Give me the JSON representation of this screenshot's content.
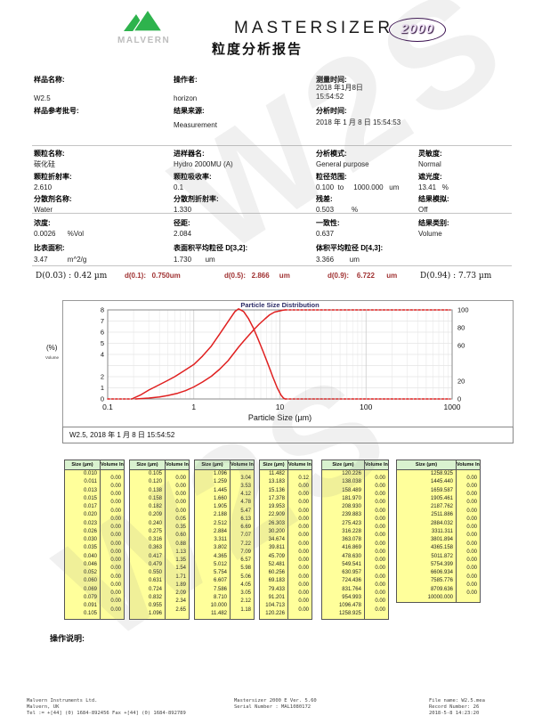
{
  "header": {
    "logo_text": "MALVERN",
    "wordmark": "MASTERSIZER",
    "badge": "2000",
    "report_title": "粒度分析报告"
  },
  "info": {
    "sample_name": {
      "label": "样品名称:",
      "value": "W2.5"
    },
    "operator": {
      "label": "操作者:",
      "value": "horizon"
    },
    "measure_time": {
      "label": "测量时间:",
      "value": "2018 年1月8日\n15:54:52"
    },
    "sample_ref": {
      "label": "样品参考批号:",
      "value": ""
    },
    "result_source": {
      "label": "结果来源:",
      "value": "Measurement"
    },
    "analysis_time": {
      "label": "分析时间:",
      "value": "2018 年 1 月 8 日 15:54:53"
    },
    "particle_name": {
      "label": "颗粒名称:",
      "value": "碳化硅"
    },
    "accessory_name": {
      "label": "进样器名:",
      "value": "Hydro 2000MU (A)"
    },
    "analysis_model": {
      "label": "分析模式:",
      "value": "General purpose"
    },
    "sensitivity": {
      "label": "灵敏度:",
      "value": "Normal"
    },
    "particle_ri": {
      "label": "颗粒折射率:",
      "value": "2.610"
    },
    "absorption": {
      "label": "颗粒吸收率:",
      "value": "0.1"
    },
    "size_range": {
      "label": "粒径范围:",
      "value": "0.100  to     1000.000   um"
    },
    "obscuration": {
      "label": "遮光度:",
      "value": "13.41   %"
    },
    "dispersant_name": {
      "label": "分散剂名称:",
      "value": "Water"
    },
    "dispersant_ri": {
      "label": "分散剂折射率:",
      "value": "1.330"
    },
    "residual": {
      "label": "残差:",
      "value": "0.503         %"
    },
    "result_emulation": {
      "label": "结果模拟:",
      "value": "Off"
    },
    "concentration": {
      "label": "浓度:",
      "value": "0.0026      %Vol"
    },
    "span": {
      "label": "径距:",
      "value": "2.084"
    },
    "uniformity": {
      "label": "一致性:",
      "value": "0.637"
    },
    "result_units": {
      "label": "结果类别:",
      "value": "Volume"
    },
    "specific_surface_area": {
      "label": "比表面积:",
      "value": "3.47          m^2/g"
    },
    "d32": {
      "label": "表面积平均粒径 D[3,2]:",
      "value": "1.730       um"
    },
    "d43": {
      "label": "体积平均粒径 D[4,3]:",
      "value": "3.366        um"
    }
  },
  "d_values": [
    {
      "text": "D(0.03) : 0.42 µm",
      "style": "plain"
    },
    {
      "text": "d(0.1):   0.750um",
      "style": "red"
    },
    {
      "text": "d(0.5):   2.866     um",
      "style": "red"
    },
    {
      "text": "d(0.9):    6.722      um",
      "style": "red"
    },
    {
      "text": "D(0.94) : 7.73 µm",
      "style": "plain"
    }
  ],
  "chart_data": {
    "type": "line",
    "title": "Particle Size Distribution",
    "xlabel": "Particle Size (µm)",
    "ylabel_left": "(%)",
    "ylabel_left_sub": "Volume",
    "x_scale": "log",
    "xlim": [
      0.1,
      1000
    ],
    "x_ticks": [
      "0.1",
      "1",
      "10",
      "100",
      "1000"
    ],
    "ylim_left": [
      0,
      8
    ],
    "y_ticks_left": [
      8,
      7,
      6,
      5,
      4,
      2,
      1,
      0
    ],
    "ylim_right": [
      0,
      100
    ],
    "y_ticks_right": [
      100,
      80,
      60,
      20,
      0
    ],
    "grid": true,
    "line_color": "#e02020",
    "legend": "W2.5, 2018 年 1 月 8 日 15:54:52",
    "series": [
      {
        "name": "volume-frequency",
        "axis": "left",
        "dash": false,
        "points": [
          [
            0.19,
            0
          ],
          [
            0.24,
            0.35
          ],
          [
            0.3,
            0.8
          ],
          [
            0.38,
            1.2
          ],
          [
            0.48,
            1.6
          ],
          [
            0.6,
            2.0
          ],
          [
            0.76,
            2.5
          ],
          [
            1.0,
            3.1
          ],
          [
            1.26,
            3.85
          ],
          [
            1.6,
            4.75
          ],
          [
            2.0,
            5.85
          ],
          [
            2.5,
            6.95
          ],
          [
            3.0,
            7.85
          ],
          [
            3.31,
            8.1
          ],
          [
            3.8,
            7.85
          ],
          [
            4.3,
            7.25
          ],
          [
            4.9,
            6.4
          ],
          [
            5.6,
            5.35
          ],
          [
            6.4,
            4.25
          ],
          [
            7.3,
            3.1
          ],
          [
            8.3,
            1.95
          ],
          [
            9.3,
            1.0
          ],
          [
            10.3,
            0.35
          ],
          [
            11.0,
            0.08
          ],
          [
            11.5,
            0
          ]
        ]
      },
      {
        "name": "volume-frequency-lead",
        "axis": "left",
        "dash": true,
        "points": [
          [
            0.1,
            0
          ],
          [
            0.19,
            0
          ]
        ]
      },
      {
        "name": "volume-frequency-tail",
        "axis": "left",
        "dash": true,
        "points": [
          [
            11.5,
            0
          ],
          [
            950,
            0
          ]
        ]
      },
      {
        "name": "cumulative-undersize",
        "axis": "right",
        "dash": false,
        "points": [
          [
            0.21,
            0
          ],
          [
            0.3,
            1.0
          ],
          [
            0.4,
            2.3
          ],
          [
            0.5,
            3.9
          ],
          [
            0.65,
            6.4
          ],
          [
            0.8,
            9.3
          ],
          [
            1.0,
            13.5
          ],
          [
            1.26,
            19.0
          ],
          [
            1.6,
            25.5
          ],
          [
            2.0,
            33.5
          ],
          [
            2.5,
            43.0
          ],
          [
            2.87,
            50.5
          ],
          [
            3.3,
            58.0
          ],
          [
            3.8,
            65.0
          ],
          [
            4.4,
            72.0
          ],
          [
            5.0,
            78.0
          ],
          [
            5.75,
            84.0
          ],
          [
            6.72,
            90.0
          ],
          [
            7.6,
            94.5
          ],
          [
            8.7,
            97.6
          ],
          [
            10.0,
            98.9
          ],
          [
            11.0,
            99.8
          ],
          [
            11.5,
            100
          ]
        ]
      },
      {
        "name": "cumulative-tail",
        "axis": "right",
        "dash": true,
        "points": [
          [
            11.5,
            100
          ],
          [
            950,
            100
          ]
        ]
      }
    ]
  },
  "tables": {
    "headers": [
      "Size (µm)",
      "Volume In %"
    ],
    "columns": [
      {
        "sizes": [
          "0.010",
          "0.011",
          "0.013",
          "0.015",
          "0.017",
          "0.020",
          "0.023",
          "0.026",
          "0.030",
          "0.035",
          "0.040",
          "0.046",
          "0.052",
          "0.060",
          "0.069",
          "0.079",
          "0.091",
          "0.105"
        ],
        "volumes": [
          "0.00",
          "0.00",
          "0.00",
          "0.00",
          "0.00",
          "0.00",
          "0.00",
          "0.00",
          "0.00",
          "0.00",
          "0.00",
          "0.00",
          "0.00",
          "0.00",
          "0.00",
          "0.00",
          "0.00"
        ]
      },
      {
        "sizes": [
          "0.105",
          "0.120",
          "0.138",
          "0.158",
          "0.182",
          "0.209",
          "0.240",
          "0.275",
          "0.316",
          "0.363",
          "0.417",
          "0.479",
          "0.550",
          "0.631",
          "0.724",
          "0.832",
          "0.955",
          "1.096"
        ],
        "volumes": [
          "0.00",
          "0.00",
          "0.00",
          "0.00",
          "0.00",
          "0.05",
          "0.35",
          "0.60",
          "0.88",
          "1.13",
          "1.35",
          "1.54",
          "1.71",
          "1.89",
          "2.09",
          "2.34",
          "2.65"
        ]
      },
      {
        "sizes": [
          "1.096",
          "1.259",
          "1.445",
          "1.660",
          "1.905",
          "2.188",
          "2.512",
          "2.884",
          "3.311",
          "3.802",
          "4.365",
          "5.012",
          "5.754",
          "6.607",
          "7.586",
          "8.710",
          "10.000",
          "11.482"
        ],
        "volumes": [
          "3.04",
          "3.53",
          "4.12",
          "4.78",
          "5.47",
          "6.13",
          "6.69",
          "7.07",
          "7.22",
          "7.09",
          "6.57",
          "5.98",
          "5.06",
          "4.05",
          "3.05",
          "2.12",
          "1.18"
        ]
      },
      {
        "sizes": [
          "11.482",
          "13.183",
          "15.136",
          "17.378",
          "19.953",
          "22.909",
          "26.303",
          "30.200",
          "34.674",
          "39.811",
          "45.709",
          "52.481",
          "60.256",
          "69.183",
          "79.433",
          "91.201",
          "104.713",
          "120.226"
        ],
        "volumes": [
          "0.12",
          "0.00",
          "0.00",
          "0.00",
          "0.00",
          "0.00",
          "0.00",
          "0.00",
          "0.00",
          "0.00",
          "0.00",
          "0.00",
          "0.00",
          "0.00",
          "0.00",
          "0.00",
          "0.00"
        ]
      },
      {
        "sizes": [
          "120.226",
          "138.038",
          "158.489",
          "181.970",
          "208.930",
          "239.883",
          "275.423",
          "316.228",
          "363.078",
          "416.869",
          "478.630",
          "549.541",
          "630.957",
          "724.436",
          "831.764",
          "954.993",
          "1096.478",
          "1258.925"
        ],
        "volumes": [
          "0.00",
          "0.00",
          "0.00",
          "0.00",
          "0.00",
          "0.00",
          "0.00",
          "0.00",
          "0.00",
          "0.00",
          "0.00",
          "0.00",
          "0.00",
          "0.00",
          "0.00",
          "0.00",
          "0.00"
        ]
      },
      {
        "sizes": [
          "1258.925",
          "1445.440",
          "1659.587",
          "1905.461",
          "2187.762",
          "2511.886",
          "2884.032",
          "3311.311",
          "3801.894",
          "4365.158",
          "5011.872",
          "5754.399",
          "6606.934",
          "7585.776",
          "8709.636",
          "10000.000"
        ],
        "volumes": [
          "0.00",
          "0.00",
          "0.00",
          "0.00",
          "0.00",
          "0.00",
          "0.00",
          "0.00",
          "0.00",
          "0.00",
          "0.00",
          "0.00",
          "0.00",
          "0.00",
          "0.00"
        ]
      }
    ]
  },
  "operation_notes_label": "操作说明:",
  "footer": {
    "left": [
      "Malvern Instruments Ltd.",
      "Malvern, UK",
      "Tel := +[44] (0) 1684-892456 Fax +[44] (0) 1684-892789"
    ],
    "center": [
      "Mastersizer 2000 E Ver. 5.60",
      "Serial Number : MAL1080172"
    ],
    "right": [
      "File name: W2.5.mea",
      "Record Number: 26",
      "2018-5-8 14:23:20"
    ]
  },
  "watermark": "W2S"
}
